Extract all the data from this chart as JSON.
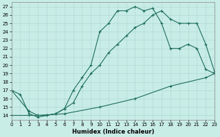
{
  "xlabel": "Humidex (Indice chaleur)",
  "xlim": [
    0,
    23
  ],
  "ylim": [
    13.5,
    27.5
  ],
  "xticks": [
    0,
    1,
    2,
    3,
    4,
    5,
    6,
    7,
    8,
    9,
    10,
    11,
    12,
    13,
    14,
    15,
    16,
    17,
    18,
    19,
    20,
    21,
    22,
    23
  ],
  "yticks": [
    14,
    15,
    16,
    17,
    18,
    19,
    20,
    21,
    22,
    23,
    24,
    25,
    26,
    27
  ],
  "bg_color": "#c8ece6",
  "line_color": "#1a6b5a",
  "line1_x": [
    0,
    1,
    2,
    3,
    4,
    5,
    6,
    7,
    8,
    9,
    10,
    11,
    12,
    13,
    14,
    15,
    16,
    17,
    18,
    19,
    20,
    21,
    22,
    23
  ],
  "line1_y": [
    17.0,
    16.5,
    14.2,
    13.8,
    14.0,
    14.2,
    14.8,
    17.0,
    18.5,
    20.0,
    24.0,
    25.0,
    26.5,
    26.5,
    27.0,
    26.5,
    26.8,
    25.0,
    22.0,
    22.0,
    22.5,
    22.0,
    19.5,
    19.0
  ],
  "line2_x": [
    0,
    2,
    3,
    4,
    5,
    6,
    7,
    8,
    9,
    10,
    11,
    12,
    13,
    14,
    15,
    16,
    17,
    18,
    19,
    20,
    21,
    22,
    23
  ],
  "line2_y": [
    17.0,
    14.5,
    14.0,
    14.0,
    14.2,
    14.8,
    15.5,
    17.5,
    19.0,
    20.0,
    21.5,
    22.5,
    23.5,
    24.5,
    25.0,
    26.0,
    26.5,
    25.5,
    25.0,
    25.0,
    25.0,
    22.5,
    19.2
  ],
  "line3_x": [
    0,
    2,
    3,
    6,
    10,
    14,
    18,
    22,
    23
  ],
  "line3_y": [
    14.0,
    14.0,
    14.0,
    14.2,
    15.0,
    16.0,
    17.5,
    18.5,
    19.0
  ]
}
